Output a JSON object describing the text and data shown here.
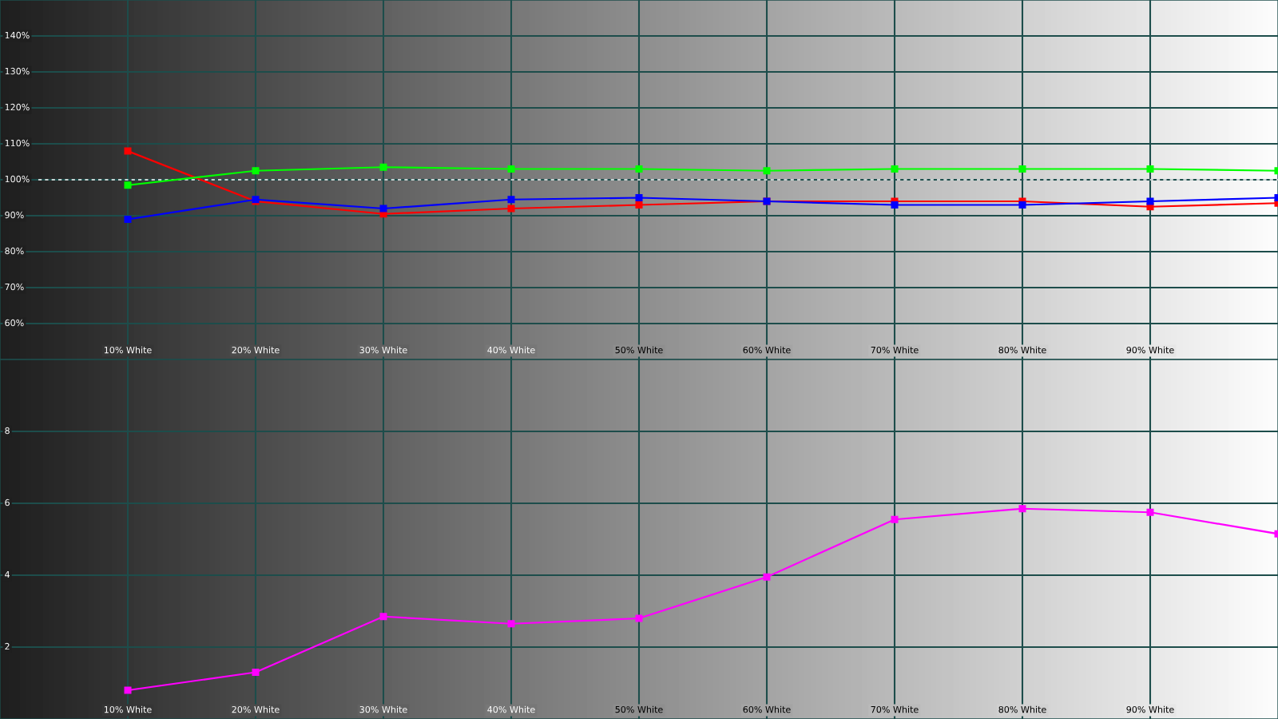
{
  "chart_data": [
    {
      "type": "line",
      "x": [
        10,
        20,
        30,
        40,
        50,
        60,
        70,
        80,
        90,
        100
      ],
      "series": [
        {
          "color": "#ff0000",
          "values": [
            108,
            94,
            90.5,
            92,
            93,
            94,
            94,
            94,
            92.5,
            93.5
          ]
        },
        {
          "color": "#00ff00",
          "values": [
            98.5,
            102.5,
            103.5,
            103,
            103,
            102.5,
            103,
            103,
            103,
            102.5
          ]
        },
        {
          "color": "#0000ff",
          "values": [
            89,
            94.5,
            92,
            94.5,
            95,
            94,
            93,
            93,
            94,
            95
          ]
        }
      ],
      "xlim": [
        0,
        100
      ],
      "xticks": [
        {
          "value": 10,
          "label": "10% White"
        },
        {
          "value": 20,
          "label": "20% White"
        },
        {
          "value": 30,
          "label": "30% White"
        },
        {
          "value": 40,
          "label": "40% White"
        },
        {
          "value": 50,
          "label": "50% White"
        },
        {
          "value": 60,
          "label": "60% White"
        },
        {
          "value": 70,
          "label": "70% White"
        },
        {
          "value": 80,
          "label": "80% White"
        },
        {
          "value": 90,
          "label": "90% White"
        }
      ],
      "ylim": [
        50,
        150
      ],
      "yticks": [
        {
          "value": 60,
          "label": "60%"
        },
        {
          "value": 70,
          "label": "70%"
        },
        {
          "value": 80,
          "label": "80%"
        },
        {
          "value": 90,
          "label": "90%"
        },
        {
          "value": 100,
          "label": "100%"
        },
        {
          "value": 110,
          "label": "110%"
        },
        {
          "value": 120,
          "label": "120%"
        },
        {
          "value": 130,
          "label": "130%"
        },
        {
          "value": 140,
          "label": "140%"
        }
      ],
      "grid": true,
      "marker": "square",
      "line_style": "solid",
      "ref_lines": [
        {
          "axis": "y",
          "value": 100,
          "color": "#ffffff",
          "line_style": "dashed"
        }
      ]
    },
    {
      "type": "line",
      "x": [
        10,
        20,
        30,
        40,
        50,
        60,
        70,
        80,
        90,
        100
      ],
      "series": [
        {
          "color": "#ff00ff",
          "values": [
            0.8,
            1.3,
            2.85,
            2.65,
            2.8,
            3.95,
            5.55,
            5.85,
            5.75,
            5.15
          ]
        }
      ],
      "xlim": [
        0,
        100
      ],
      "xticks": [
        {
          "value": 10,
          "label": "10% White"
        },
        {
          "value": 20,
          "label": "20% White"
        },
        {
          "value": 30,
          "label": "30% White"
        },
        {
          "value": 40,
          "label": "40% White"
        },
        {
          "value": 50,
          "label": "50% White"
        },
        {
          "value": 60,
          "label": "60% White"
        },
        {
          "value": 70,
          "label": "70% White"
        },
        {
          "value": 80,
          "label": "80% White"
        },
        {
          "value": 90,
          "label": "90% White"
        }
      ],
      "ylim": [
        0,
        10
      ],
      "yticks": [
        2,
        4,
        6,
        8
      ],
      "grid": true,
      "marker": "square",
      "line_style": "solid"
    }
  ]
}
